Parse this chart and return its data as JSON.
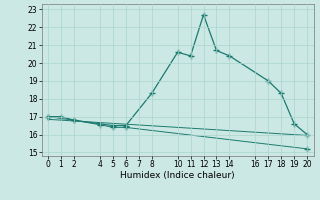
{
  "xlabel": "Humidex (Indice chaleur)",
  "bg_color": "#cce8e4",
  "line_color": "#1a7a6e",
  "xlim": [
    -0.5,
    20.5
  ],
  "ylim": [
    14.8,
    23.3
  ],
  "yticks": [
    15,
    16,
    17,
    18,
    19,
    20,
    21,
    22,
    23
  ],
  "xticks": [
    0,
    1,
    2,
    4,
    5,
    6,
    7,
    8,
    10,
    11,
    12,
    13,
    14,
    16,
    17,
    18,
    19,
    20
  ],
  "series1_x": [
    0,
    1,
    2,
    5,
    6,
    8,
    10,
    11,
    12,
    13,
    14,
    17,
    18,
    19,
    20
  ],
  "series1_y": [
    17.0,
    17.0,
    16.8,
    16.5,
    16.5,
    18.3,
    20.6,
    20.4,
    22.7,
    20.7,
    20.4,
    19.0,
    18.3,
    16.6,
    16.0
  ],
  "series2_x": [
    0,
    2,
    4,
    5,
    6,
    20
  ],
  "series2_y": [
    17.0,
    16.8,
    16.55,
    16.4,
    16.4,
    15.2
  ],
  "series3_x": [
    0,
    20
  ],
  "series3_y": [
    16.85,
    15.95
  ],
  "grid_color": "#aad4ce",
  "marker": "+",
  "markersize": 4,
  "linewidth1": 0.9,
  "linewidth2": 0.7,
  "linewidth3": 0.7,
  "tick_labelsize": 5.5,
  "xlabel_fontsize": 6.5
}
